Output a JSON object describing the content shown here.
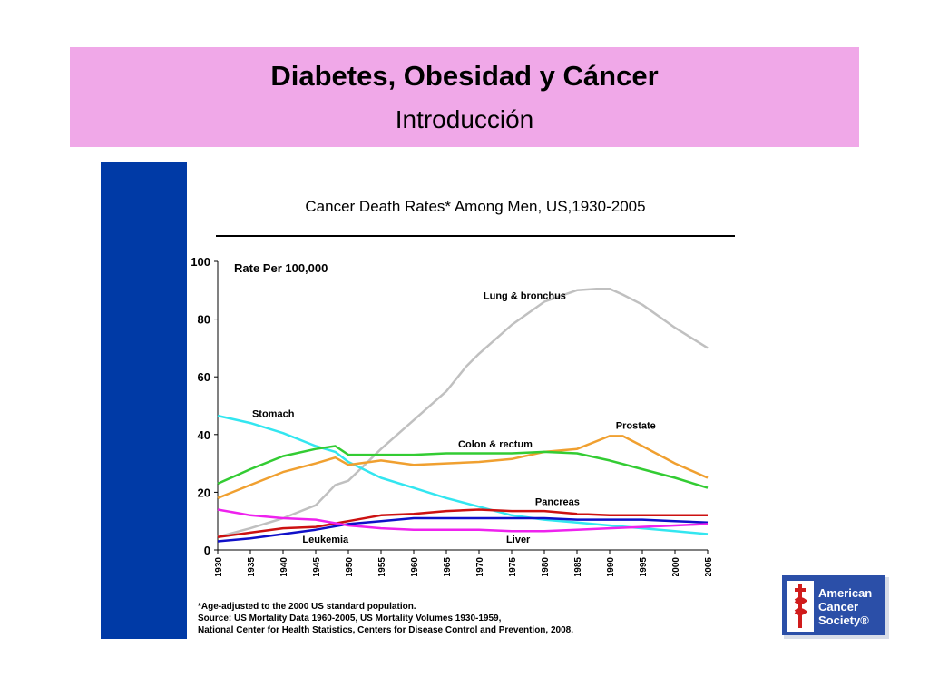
{
  "header": {
    "title": "Diabetes, Obesidad y Cáncer",
    "subtitle": "Introducción",
    "background_color": "#f0a8e8"
  },
  "sidebar_color": "#003aa6",
  "chart_data": {
    "type": "line",
    "title": "Cancer Death Rates* Among Men, US,1930-2005",
    "ylabel": "Rate Per 100,000",
    "xlabel": "",
    "ylim": [
      0,
      100
    ],
    "xlim": [
      1930,
      2005
    ],
    "yticks": [
      "0",
      "20",
      "40",
      "60",
      "80",
      "100"
    ],
    "xticks": [
      "1930",
      "1935",
      "1940",
      "1945",
      "1950",
      "1955",
      "1960",
      "1965",
      "1970",
      "1975",
      "1980",
      "1985",
      "1990",
      "1995",
      "2000",
      "2005"
    ],
    "grid": false,
    "legend": "inline labels",
    "series": [
      {
        "name": "Lung & bronchus",
        "color": "#c0c0c0",
        "x": [
          1930,
          1935,
          1940,
          1945,
          1948,
          1950,
          1955,
          1960,
          1965,
          1968,
          1970,
          1975,
          1980,
          1985,
          1988,
          1990,
          1992,
          1995,
          2000,
          2005
        ],
        "values": [
          4.5,
          7.5,
          11,
          15.5,
          22.5,
          24,
          35,
          45,
          55,
          63.5,
          68,
          78,
          86,
          90,
          90.5,
          90.5,
          88.5,
          85,
          77,
          70
        ]
      },
      {
        "name": "Stomach",
        "color": "#33e6f0",
        "x": [
          1930,
          1935,
          1940,
          1945,
          1948,
          1950,
          1955,
          1960,
          1965,
          1970,
          1975,
          1980,
          1985,
          1990,
          1995,
          2000,
          2005
        ],
        "values": [
          46.5,
          44,
          40.5,
          36,
          34,
          30.5,
          25,
          21.5,
          18,
          15,
          12,
          10.5,
          9.5,
          8.5,
          7.5,
          6.5,
          5.5
        ]
      },
      {
        "name": "Prostate",
        "color": "#f0a030",
        "x": [
          1930,
          1935,
          1940,
          1945,
          1948,
          1950,
          1955,
          1960,
          1965,
          1970,
          1975,
          1980,
          1985,
          1990,
          1992,
          1995,
          2000,
          2005
        ],
        "values": [
          18,
          22.5,
          27,
          30,
          32,
          29.5,
          31,
          29.5,
          30,
          30.5,
          31.5,
          34,
          35,
          39.5,
          39.5,
          36,
          30,
          25
        ]
      },
      {
        "name": "Colon & rectum",
        "color": "#33cc33",
        "x": [
          1930,
          1935,
          1940,
          1945,
          1948,
          1950,
          1955,
          1960,
          1965,
          1970,
          1975,
          1980,
          1985,
          1990,
          1995,
          2000,
          2005
        ],
        "values": [
          23,
          28,
          32.5,
          35,
          36,
          33,
          33,
          33,
          33.5,
          33.5,
          33.5,
          34,
          33.5,
          31,
          28,
          25,
          21.5
        ]
      },
      {
        "name": "Pancreas",
        "color": "#cc1111",
        "x": [
          1930,
          1935,
          1940,
          1945,
          1950,
          1955,
          1960,
          1965,
          1970,
          1975,
          1980,
          1985,
          1990,
          1995,
          2000,
          2005
        ],
        "values": [
          4.5,
          6,
          7.5,
          8,
          10,
          12,
          12.5,
          13.5,
          14,
          13.5,
          13.5,
          12.5,
          12,
          12,
          12,
          12
        ]
      },
      {
        "name": "Leukemia",
        "color": "#1010c8",
        "x": [
          1930,
          1935,
          1940,
          1945,
          1950,
          1955,
          1960,
          1965,
          1970,
          1975,
          1980,
          1985,
          1990,
          1995,
          2000,
          2005
        ],
        "values": [
          3,
          4,
          5.5,
          7,
          9,
          10,
          11,
          11,
          11,
          11,
          11,
          10.5,
          10.5,
          10.5,
          10,
          9.5
        ]
      },
      {
        "name": "Liver",
        "color": "#ee22ee",
        "x": [
          1930,
          1935,
          1940,
          1945,
          1950,
          1955,
          1960,
          1965,
          1970,
          1975,
          1980,
          1985,
          1990,
          1995,
          2000,
          2005
        ],
        "values": [
          14,
          12,
          11,
          10.5,
          8.5,
          7.5,
          7,
          7,
          7,
          6.5,
          6.5,
          7,
          7.5,
          8,
          8.5,
          9
        ]
      }
    ]
  },
  "footnote": {
    "line1": "*Age-adjusted to the 2000 US standard population.",
    "line2": "Source:  US Mortality Data 1960-2005, US Mortality Volumes 1930-1959,",
    "line3": "National Center for Health Statistics, Centers for Disease Control and Prevention, 2008."
  },
  "logo": {
    "line1": "American",
    "line2": "Cancer",
    "line3": "Society®"
  }
}
